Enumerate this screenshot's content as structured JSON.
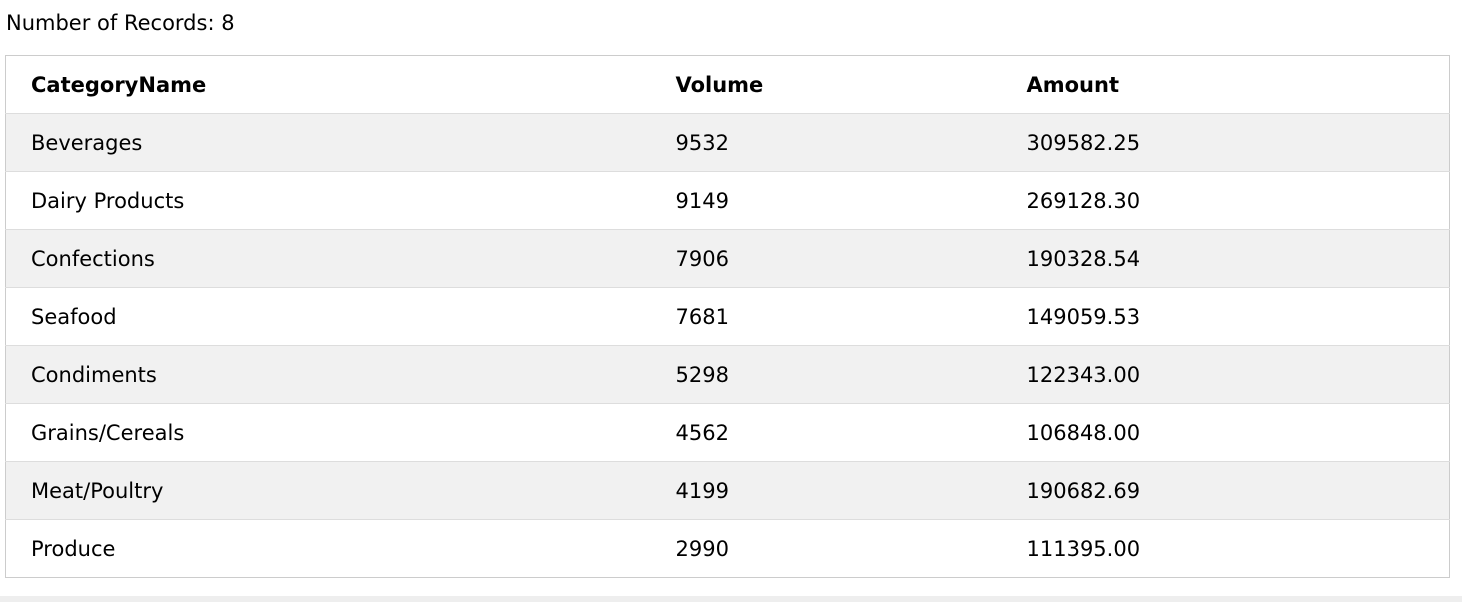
{
  "record_count": {
    "text": "Number of Records: 8"
  },
  "table": {
    "headers": [
      "CategoryName",
      "Volume",
      "Amount"
    ],
    "rows": [
      [
        "Beverages",
        "9532",
        "309582.25"
      ],
      [
        "Dairy Products",
        "9149",
        "269128.30"
      ],
      [
        "Confections",
        "7906",
        "190328.54"
      ],
      [
        "Seafood",
        "7681",
        "149059.53"
      ],
      [
        "Condiments",
        "5298",
        "122343.00"
      ],
      [
        "Grains/Cereals",
        "4562",
        "106848.00"
      ],
      [
        "Meat/Poultry",
        "4199",
        "190682.69"
      ],
      [
        "Produce",
        "2990",
        "111395.00"
      ]
    ]
  },
  "colors": {
    "stripe": "#f1f1f1",
    "border": "#cccccc",
    "row_divider": "#dddddd"
  }
}
